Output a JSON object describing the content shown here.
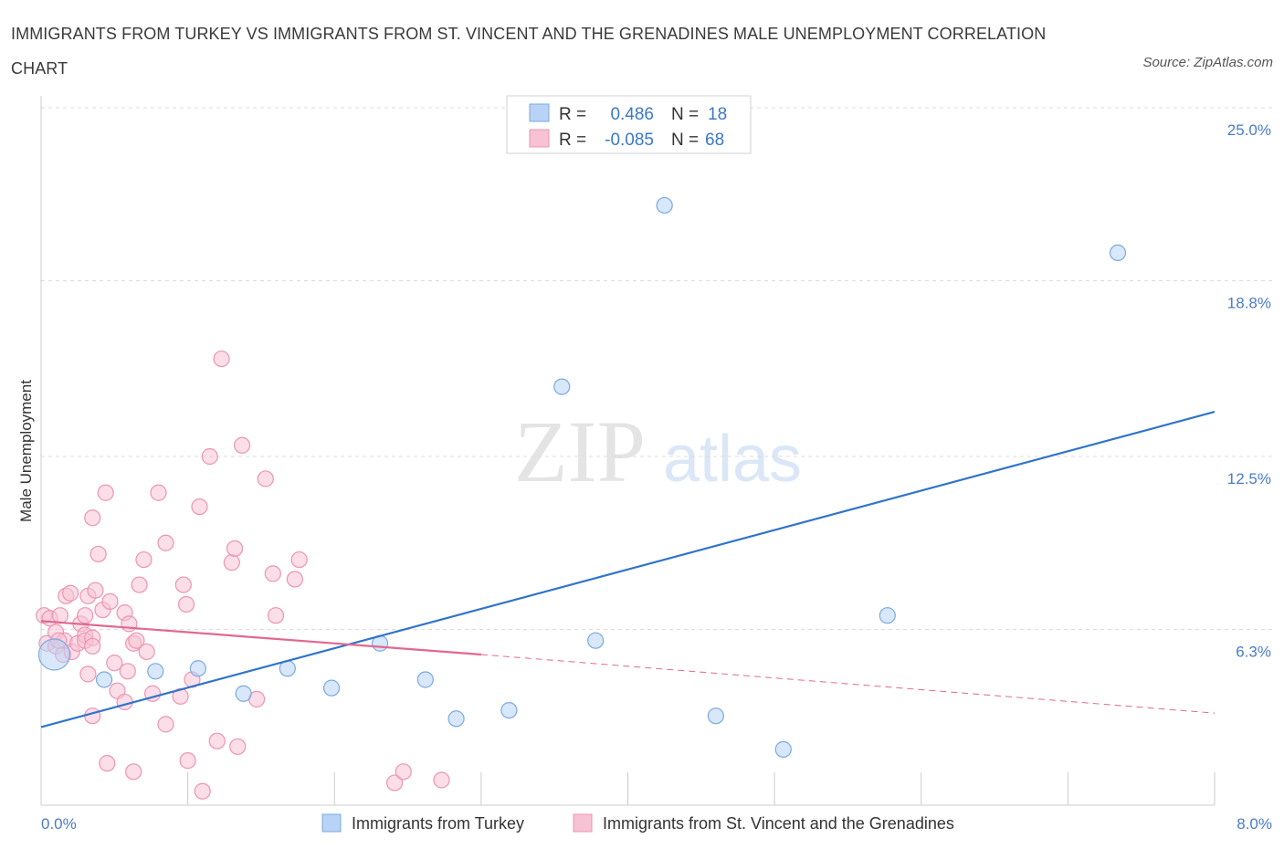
{
  "title": "IMMIGRANTS FROM TURKEY VS IMMIGRANTS FROM ST. VINCENT AND THE GRENADINES MALE UNEMPLOYMENT CORRELATION CHART",
  "source": "Source: ZipAtlas.com",
  "watermark": {
    "zip": "ZIP",
    "atlas": "atlas"
  },
  "colors": {
    "blue_fill": "#b8d3f5",
    "blue_stroke": "#7aaae0",
    "blue_line": "#2f74c9",
    "pink_fill": "#f7c2d3",
    "pink_stroke": "#ec94b3",
    "pink_line": "#e0688f",
    "grid": "#dcdcdc",
    "axis_label": "#4a7cc4"
  },
  "legend": {
    "rows": [
      {
        "r_label": "R =",
        "r_value": "0.486",
        "n_label": "N =",
        "n_value": "18"
      },
      {
        "r_label": "R =",
        "r_value": "-0.085",
        "n_label": "N =",
        "n_value": "68"
      }
    ]
  },
  "chart_data": {
    "type": "scatter",
    "title": "IMMIGRANTS FROM TURKEY VS IMMIGRANTS FROM ST. VINCENT AND THE GRENADINES MALE UNEMPLOYMENT CORRELATION CHART",
    "xlabel": "",
    "ylabel": "Male Unemployment",
    "xlim": [
      0,
      8
    ],
    "ylim": [
      0,
      25
    ],
    "x_tick_labels": [
      "0.0%",
      "8.0%"
    ],
    "y_ticks": [
      6.3,
      12.5,
      18.8,
      25.0
    ],
    "y_tick_labels": [
      "6.3%",
      "12.5%",
      "18.8%",
      "25.0%"
    ],
    "legend_position": "bottom",
    "series": [
      {
        "name": "Immigrants from Turkey",
        "color": "blue",
        "R": 0.486,
        "N": 18,
        "trend": {
          "x": [
            0,
            8
          ],
          "y": [
            2.8,
            14.1
          ],
          "dashed_extension": false
        },
        "points": [
          {
            "x": 0.09,
            "y": 5.4,
            "big": true
          },
          {
            "x": 0.43,
            "y": 4.5
          },
          {
            "x": 0.78,
            "y": 4.8
          },
          {
            "x": 1.07,
            "y": 4.9
          },
          {
            "x": 1.38,
            "y": 4.0
          },
          {
            "x": 1.68,
            "y": 4.9
          },
          {
            "x": 1.98,
            "y": 4.2
          },
          {
            "x": 2.31,
            "y": 5.8
          },
          {
            "x": 2.62,
            "y": 4.5
          },
          {
            "x": 2.83,
            "y": 3.1
          },
          {
            "x": 3.19,
            "y": 3.4
          },
          {
            "x": 3.55,
            "y": 15.0
          },
          {
            "x": 3.78,
            "y": 5.9
          },
          {
            "x": 4.25,
            "y": 21.5
          },
          {
            "x": 4.6,
            "y": 3.2
          },
          {
            "x": 5.06,
            "y": 2.0
          },
          {
            "x": 5.77,
            "y": 6.8
          },
          {
            "x": 7.34,
            "y": 19.8
          }
        ]
      },
      {
        "name": "Immigrants from St. Vincent and the Grenadines",
        "color": "pink",
        "R": -0.085,
        "N": 68,
        "trend": {
          "x": [
            0,
            3.0
          ],
          "y": [
            6.6,
            5.4
          ],
          "dashed_to": [
            8,
            3.3
          ]
        },
        "points": [
          {
            "x": 0.02,
            "y": 6.8
          },
          {
            "x": 0.04,
            "y": 5.8
          },
          {
            "x": 0.06,
            "y": 6.7
          },
          {
            "x": 0.1,
            "y": 5.7
          },
          {
            "x": 0.1,
            "y": 6.2
          },
          {
            "x": 0.13,
            "y": 6.8
          },
          {
            "x": 0.15,
            "y": 5.4
          },
          {
            "x": 0.16,
            "y": 5.9
          },
          {
            "x": 0.17,
            "y": 7.5
          },
          {
            "x": 0.21,
            "y": 5.5
          },
          {
            "x": 0.2,
            "y": 7.6
          },
          {
            "x": 0.25,
            "y": 5.8
          },
          {
            "x": 0.27,
            "y": 6.5
          },
          {
            "x": 0.3,
            "y": 6.1
          },
          {
            "x": 0.3,
            "y": 5.9
          },
          {
            "x": 0.32,
            "y": 7.5
          },
          {
            "x": 0.35,
            "y": 6.0
          },
          {
            "x": 0.3,
            "y": 6.8
          },
          {
            "x": 0.35,
            "y": 5.7
          },
          {
            "x": 0.37,
            "y": 7.7
          },
          {
            "x": 0.39,
            "y": 9.0
          },
          {
            "x": 0.32,
            "y": 4.7
          },
          {
            "x": 0.42,
            "y": 7.0
          },
          {
            "x": 0.35,
            "y": 3.2
          },
          {
            "x": 0.35,
            "y": 10.3
          },
          {
            "x": 0.47,
            "y": 7.3
          },
          {
            "x": 0.5,
            "y": 5.1
          },
          {
            "x": 0.52,
            "y": 4.1
          },
          {
            "x": 0.45,
            "y": 1.5
          },
          {
            "x": 0.44,
            "y": 11.2
          },
          {
            "x": 0.57,
            "y": 6.9
          },
          {
            "x": 0.59,
            "y": 4.8
          },
          {
            "x": 0.6,
            "y": 6.5
          },
          {
            "x": 0.63,
            "y": 5.8
          },
          {
            "x": 0.65,
            "y": 5.9
          },
          {
            "x": 0.57,
            "y": 3.7
          },
          {
            "x": 0.67,
            "y": 7.9
          },
          {
            "x": 0.7,
            "y": 8.8
          },
          {
            "x": 0.72,
            "y": 5.5
          },
          {
            "x": 0.63,
            "y": 1.2
          },
          {
            "x": 0.8,
            "y": 11.2
          },
          {
            "x": 0.76,
            "y": 4.0
          },
          {
            "x": 0.85,
            "y": 2.9
          },
          {
            "x": 0.85,
            "y": 9.4
          },
          {
            "x": 0.95,
            "y": 3.9
          },
          {
            "x": 0.97,
            "y": 7.9
          },
          {
            "x": 0.99,
            "y": 7.2
          },
          {
            "x": 1.0,
            "y": 1.6
          },
          {
            "x": 1.03,
            "y": 4.5
          },
          {
            "x": 1.08,
            "y": 10.7
          },
          {
            "x": 1.1,
            "y": 0.5
          },
          {
            "x": 1.15,
            "y": 12.5
          },
          {
            "x": 1.2,
            "y": 2.3
          },
          {
            "x": 1.23,
            "y": 16.0
          },
          {
            "x": 1.3,
            "y": 8.7
          },
          {
            "x": 1.32,
            "y": 9.2
          },
          {
            "x": 1.34,
            "y": 2.1
          },
          {
            "x": 1.37,
            "y": 12.9
          },
          {
            "x": 1.47,
            "y": 3.8
          },
          {
            "x": 1.53,
            "y": 11.7
          },
          {
            "x": 1.58,
            "y": 8.3
          },
          {
            "x": 1.6,
            "y": 6.8
          },
          {
            "x": 1.73,
            "y": 8.1
          },
          {
            "x": 1.76,
            "y": 8.8
          },
          {
            "x": 2.41,
            "y": 0.8
          },
          {
            "x": 2.47,
            "y": 1.2
          },
          {
            "x": 2.73,
            "y": 0.9
          },
          {
            "x": 0.12,
            "y": 5.9
          }
        ]
      }
    ]
  },
  "bottom_legend": [
    {
      "label": "Immigrants from Turkey",
      "color": "blue"
    },
    {
      "label": "Immigrants from St. Vincent and the Grenadines",
      "color": "pink"
    }
  ]
}
